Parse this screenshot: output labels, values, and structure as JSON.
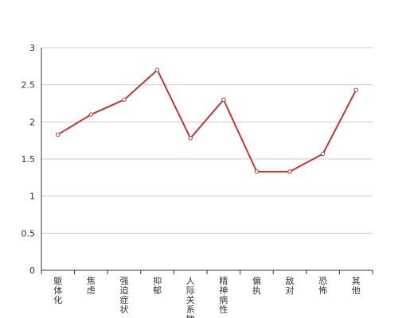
{
  "chart_data": {
    "type": "line",
    "title": "",
    "xlabel": "",
    "ylabel": "",
    "categories": [
      "躯体化",
      "焦虑",
      "强迫症状",
      "抑郁",
      "人际关系敏感",
      "精神病性",
      "偏执",
      "敌对",
      "恐怖",
      "其他"
    ],
    "series": [
      {
        "values": [
          1.83,
          2.1,
          2.3,
          2.7,
          1.78,
          2.3,
          1.33,
          1.33,
          1.57,
          2.43
        ]
      }
    ],
    "ylim": [
      0,
      3
    ],
    "yticks": [
      "0",
      "0.5",
      "1",
      "1.5",
      "2",
      "2.5",
      "3"
    ],
    "grid": true,
    "legend": "none",
    "colors": {
      "series": "#c23531",
      "axis": "#333333",
      "grid": "#cccccc",
      "marker_fill": "#ffffff"
    }
  }
}
